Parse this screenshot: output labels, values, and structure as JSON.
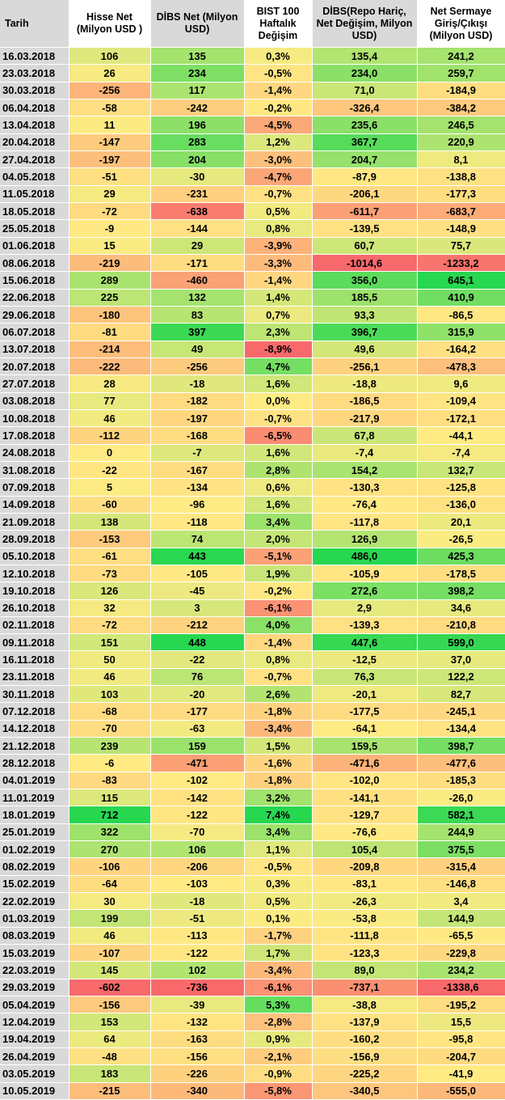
{
  "headers": [
    "Tarih",
    "Hisse Net (Milyon USD )",
    "DİBS Net (Milyon USD)",
    "BIST 100 Haftalık Değişim",
    "DİBS(Repo Hariç, Net Değişim, Milyon USD)",
    "Net Sermaye Giriş/Çıkışı (Milyon USD)"
  ],
  "rows": [
    [
      "16.03.2018",
      "106",
      "135",
      "0,3%",
      "135,4",
      "241,2"
    ],
    [
      "23.03.2018",
      "26",
      "234",
      "-0,5%",
      "234,0",
      "259,7"
    ],
    [
      "30.03.2018",
      "-256",
      "117",
      "-1,4%",
      "71,0",
      "-184,9"
    ],
    [
      "06.04.2018",
      "-58",
      "-242",
      "-0,2%",
      "-326,4",
      "-384,2"
    ],
    [
      "13.04.2018",
      "11",
      "196",
      "-4,5%",
      "235,6",
      "246,5"
    ],
    [
      "20.04.2018",
      "-147",
      "283",
      "1,2%",
      "367,7",
      "220,9"
    ],
    [
      "27.04.2018",
      "-197",
      "204",
      "-3,0%",
      "204,7",
      "8,1"
    ],
    [
      "04.05.2018",
      "-51",
      "-30",
      "-4,7%",
      "-87,9",
      "-138,8"
    ],
    [
      "11.05.2018",
      "29",
      "-231",
      "-0,7%",
      "-206,1",
      "-177,3"
    ],
    [
      "18.05.2018",
      "-72",
      "-638",
      "0,5%",
      "-611,7",
      "-683,7"
    ],
    [
      "25.05.2018",
      "-9",
      "-144",
      "0,8%",
      "-139,5",
      "-148,9"
    ],
    [
      "01.06.2018",
      "15",
      "29",
      "-3,9%",
      "60,7",
      "75,7"
    ],
    [
      "08.06.2018",
      "-219",
      "-171",
      "-3,3%",
      "-1014,6",
      "-1233,2"
    ],
    [
      "15.06.2018",
      "289",
      "-460",
      "-1,4%",
      "356,0",
      "645,1"
    ],
    [
      "22.06.2018",
      "225",
      "132",
      "1,4%",
      "185,5",
      "410,9"
    ],
    [
      "29.06.2018",
      "-180",
      "83",
      "0,7%",
      "93,3",
      "-86,5"
    ],
    [
      "06.07.2018",
      "-81",
      "397",
      "2,3%",
      "396,7",
      "315,9"
    ],
    [
      "13.07.2018",
      "-214",
      "49",
      "-8,9%",
      "49,6",
      "-164,2"
    ],
    [
      "20.07.2018",
      "-222",
      "-256",
      "4,7%",
      "-256,1",
      "-478,3"
    ],
    [
      "27.07.2018",
      "28",
      "-18",
      "1,6%",
      "-18,8",
      "9,6"
    ],
    [
      "03.08.2018",
      "77",
      "-182",
      "0,0%",
      "-186,5",
      "-109,4"
    ],
    [
      "10.08.2018",
      "46",
      "-197",
      "-0,7%",
      "-217,9",
      "-172,1"
    ],
    [
      "17.08.2018",
      "-112",
      "-168",
      "-6,5%",
      "67,8",
      "-44,1"
    ],
    [
      "24.08.2018",
      "0",
      "-7",
      "1,6%",
      "-7,4",
      "-7,4"
    ],
    [
      "31.08.2018",
      "-22",
      "-167",
      "2,8%",
      "154,2",
      "132,7"
    ],
    [
      "07.09.2018",
      "5",
      "-134",
      "0,6%",
      "-130,3",
      "-125,8"
    ],
    [
      "14.09.2018",
      "-60",
      "-96",
      "1,6%",
      "-76,4",
      "-136,0"
    ],
    [
      "21.09.2018",
      "138",
      "-118",
      "3,4%",
      "-117,8",
      "20,1"
    ],
    [
      "28.09.2018",
      "-153",
      "74",
      "2,0%",
      "126,9",
      "-26,5"
    ],
    [
      "05.10.2018",
      "-61",
      "443",
      "-5,1%",
      "486,0",
      "425,3"
    ],
    [
      "12.10.2018",
      "-73",
      "-105",
      "1,9%",
      "-105,9",
      "-178,5"
    ],
    [
      "19.10.2018",
      "126",
      "-45",
      "-0,2%",
      "272,6",
      "398,2"
    ],
    [
      "26.10.2018",
      "32",
      "3",
      "-6,1%",
      "2,9",
      "34,6"
    ],
    [
      "02.11.2018",
      "-72",
      "-212",
      "4,0%",
      "-139,3",
      "-210,8"
    ],
    [
      "09.11.2018",
      "151",
      "448",
      "-1,4%",
      "447,6",
      "599,0"
    ],
    [
      "16.11.2018",
      "50",
      "-22",
      "0,8%",
      "-12,5",
      "37,0"
    ],
    [
      "23.11.2018",
      "46",
      "76",
      "-0,7%",
      "76,3",
      "122,2"
    ],
    [
      "30.11.2018",
      "103",
      "-20",
      "2,6%",
      "-20,1",
      "82,7"
    ],
    [
      "07.12.2018",
      "-68",
      "-177",
      "-1,8%",
      "-177,5",
      "-245,1"
    ],
    [
      "14.12.2018",
      "-70",
      "-63",
      "-3,4%",
      "-64,1",
      "-134,4"
    ],
    [
      "21.12.2018",
      "239",
      "159",
      "1,5%",
      "159,5",
      "398,7"
    ],
    [
      "28.12.2018",
      "-6",
      "-471",
      "-1,6%",
      "-471,6",
      "-477,6"
    ],
    [
      "04.01.2019",
      "-83",
      "-102",
      "-1,8%",
      "-102,0",
      "-185,3"
    ],
    [
      "11.01.2019",
      "115",
      "-142",
      "3,2%",
      "-141,1",
      "-26,0"
    ],
    [
      "18.01.2019",
      "712",
      "-122",
      "7,4%",
      "-129,7",
      "582,1"
    ],
    [
      "25.01.2019",
      "322",
      "-70",
      "3,4%",
      "-76,6",
      "244,9"
    ],
    [
      "01.02.2019",
      "270",
      "106",
      "1,1%",
      "105,4",
      "375,5"
    ],
    [
      "08.02.2019",
      "-106",
      "-206",
      "-0,5%",
      "-209,8",
      "-315,4"
    ],
    [
      "15.02.2019",
      "-64",
      "-103",
      "0,3%",
      "-83,1",
      "-146,8"
    ],
    [
      "22.02.2019",
      "30",
      "-18",
      "0,5%",
      "-26,3",
      "3,4"
    ],
    [
      "01.03.2019",
      "199",
      "-51",
      "0,1%",
      "-53,8",
      "144,9"
    ],
    [
      "08.03.2019",
      "46",
      "-113",
      "-1,7%",
      "-111,8",
      "-65,5"
    ],
    [
      "15.03.2019",
      "-107",
      "-122",
      "1,7%",
      "-123,3",
      "-229,8"
    ],
    [
      "22.03.2019",
      "145",
      "102",
      "-3,4%",
      "89,0",
      "234,2"
    ],
    [
      "29.03.2019",
      "-602",
      "-736",
      "-6,1%",
      "-737,1",
      "-1338,6"
    ],
    [
      "05.04.2019",
      "-156",
      "-39",
      "5,3%",
      "-38,8",
      "-195,2"
    ],
    [
      "12.04.2019",
      "153",
      "-132",
      "-2,8%",
      "-137,9",
      "15,5"
    ],
    [
      "19.04.2019",
      "64",
      "-163",
      "0,9%",
      "-160,2",
      "-95,8"
    ],
    [
      "26.04.2019",
      "-48",
      "-156",
      "-2,1%",
      "-156,9",
      "-204,7"
    ],
    [
      "03.05.2019",
      "183",
      "-226",
      "-0,9%",
      "-225,2",
      "-41,9"
    ],
    [
      "10.05.2019",
      "-215",
      "-340",
      "-5,8%",
      "-340,5",
      "-555,0"
    ]
  ]
}
